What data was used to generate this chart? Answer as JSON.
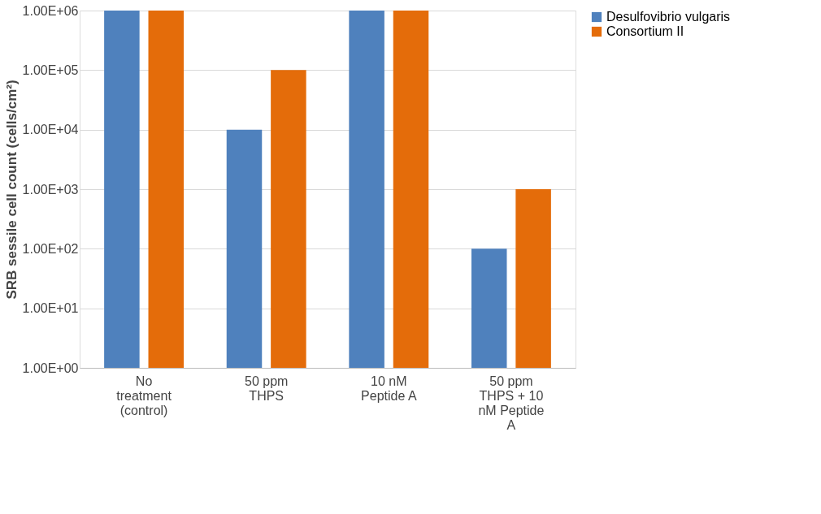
{
  "chart_data": {
    "type": "bar",
    "ylabel": "SRB sessile cell count (cells/cm²)",
    "categories": [
      "No treatment (control)",
      "50 ppm THPS",
      "10 nM Peptide A",
      "50 ppm THPS + 10 nM Peptide A"
    ],
    "series": [
      {
        "name": "Desulfovibrio vulgaris",
        "color": "#4f81bd",
        "values": [
          1000000,
          10000,
          1000000,
          100
        ]
      },
      {
        "name": "Consortium II",
        "color": "#e46c0a",
        "values": [
          1000000,
          100000,
          1000000,
          1000
        ]
      }
    ],
    "log": "y",
    "ylim": [
      1,
      1000000
    ],
    "yticks": [
      {
        "value": 1,
        "label": "1.00E+00"
      },
      {
        "value": 10,
        "label": "1.00E+01"
      },
      {
        "value": 100,
        "label": "1.00E+02"
      },
      {
        "value": 1000,
        "label": "1.00E+03"
      },
      {
        "value": 10000,
        "label": "1.00E+04"
      },
      {
        "value": 100000,
        "label": "1.00E+05"
      },
      {
        "value": 1000000,
        "label": "1.00E+06"
      }
    ],
    "grid": "y",
    "legend": "right"
  }
}
